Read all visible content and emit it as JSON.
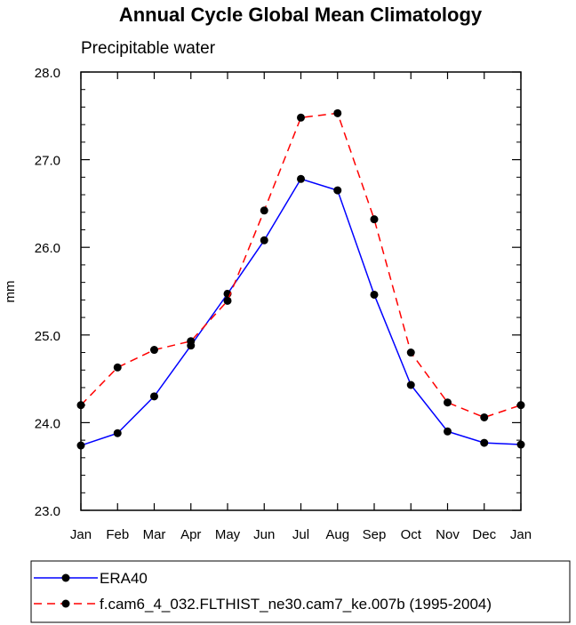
{
  "chart_data": {
    "type": "line",
    "title": "Annual Cycle Global Mean Climatology",
    "subtitle": "Precipitable water",
    "xlabel": "",
    "ylabel": "mm",
    "categories": [
      "Jan",
      "Feb",
      "Mar",
      "Apr",
      "May",
      "Jun",
      "Jul",
      "Aug",
      "Sep",
      "Oct",
      "Nov",
      "Dec",
      "Jan"
    ],
    "ylim": [
      23.0,
      28.0
    ],
    "yticks": [
      "23.0",
      "24.0",
      "25.0",
      "26.0",
      "27.0",
      "28.0"
    ],
    "grid": false,
    "legend_position": "bottom",
    "series": [
      {
        "name": "ERA40",
        "color": "#0000ff",
        "line_style": "solid",
        "values": [
          23.74,
          23.88,
          24.3,
          24.88,
          25.47,
          26.08,
          26.78,
          26.65,
          25.46,
          24.43,
          23.9,
          23.77,
          23.75
        ]
      },
      {
        "name": "f.cam6_4_032.FLTHIST_ne30.cam7_ke.007b (1995-2004)",
        "color": "#ff0000",
        "line_style": "dashed",
        "values": [
          24.2,
          24.63,
          24.83,
          24.93,
          25.39,
          26.42,
          27.48,
          27.53,
          26.32,
          24.8,
          24.23,
          24.06,
          24.2
        ]
      }
    ]
  }
}
